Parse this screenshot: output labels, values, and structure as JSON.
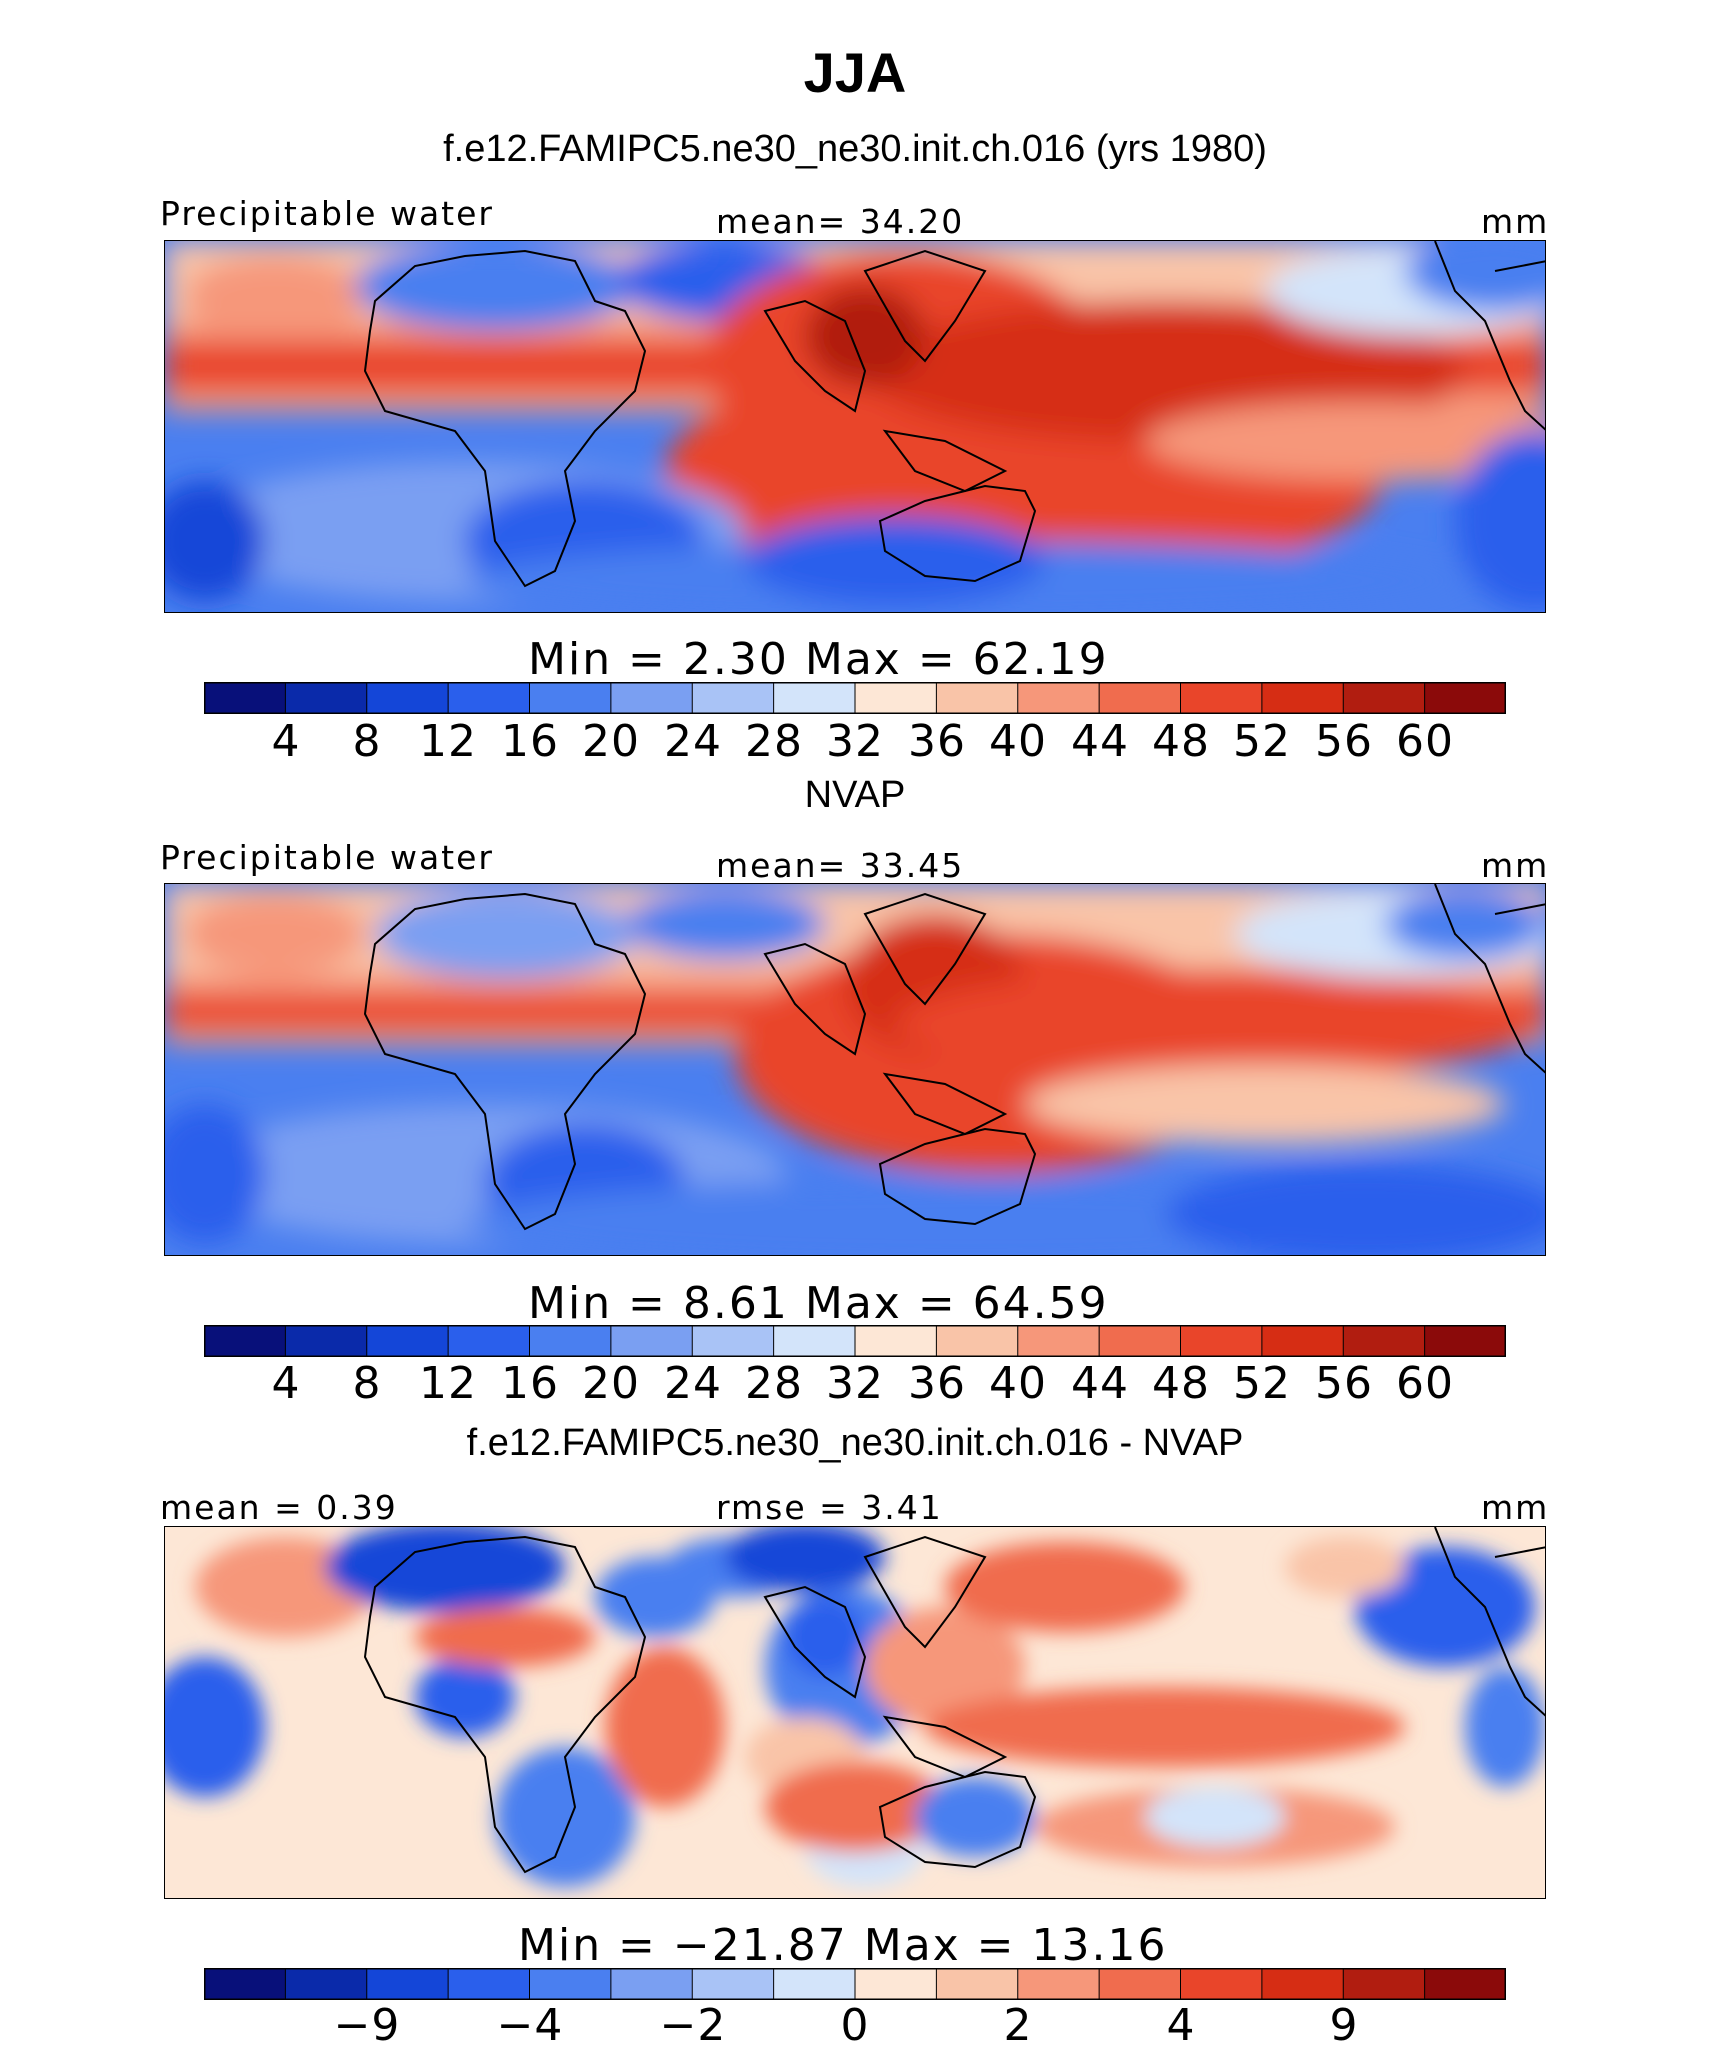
{
  "title": "JJA",
  "colors": {
    "fill_scale": [
      "#08107a",
      "#0a2aaa",
      "#1446d8",
      "#2a5fec",
      "#4a7ff0",
      "#7a9ff2",
      "#a9c3f6",
      "#d3e4fa",
      "#fde7d6",
      "#f9c4a8",
      "#f6977a",
      "#f06c4e",
      "#e9452a",
      "#d62d14",
      "#b11d10",
      "#8b0a0a"
    ],
    "diff_scale": [
      "#08107a",
      "#0a2aaa",
      "#1446d8",
      "#2a5fec",
      "#4a7ff0",
      "#7a9ff2",
      "#a9c3f6",
      "#d3e4fa",
      "#fde7d6",
      "#f9c4a8",
      "#f6977a",
      "#f06c4e",
      "#e9452a",
      "#d62d14",
      "#b11d10",
      "#8b0a0a"
    ]
  },
  "panels": [
    {
      "subtitle": "f.e12.FAMIPC5.ne30_ne30.init.ch.016 (yrs 1980)",
      "left_label": "Precipitable water",
      "center_label": "mean=  34.20",
      "right_label": "mm",
      "stats": "Min =    2.30  Max =   62.19",
      "ticks": [
        "4",
        "8",
        "12",
        "16",
        "20",
        "24",
        "28",
        "32",
        "36",
        "40",
        "44",
        "48",
        "52",
        "56",
        "60"
      ]
    },
    {
      "subtitle": "NVAP",
      "left_label": "Precipitable water",
      "center_label": "mean=  33.45",
      "right_label": "mm",
      "stats": "Min =    8.61  Max =   64.59",
      "ticks": [
        "4",
        "8",
        "12",
        "16",
        "20",
        "24",
        "28",
        "32",
        "36",
        "40",
        "44",
        "48",
        "52",
        "56",
        "60"
      ]
    },
    {
      "subtitle": "f.e12.FAMIPC5.ne30_ne30.init.ch.016 - NVAP",
      "left_label": "mean =   0.39",
      "center_label": "rmse =   3.41",
      "right_label": "mm",
      "stats": "Min = −21.87  Max =   13.16",
      "ticks": [
        "−9",
        "−4",
        "−2",
        "0",
        "2",
        "4",
        "9"
      ]
    }
  ]
}
